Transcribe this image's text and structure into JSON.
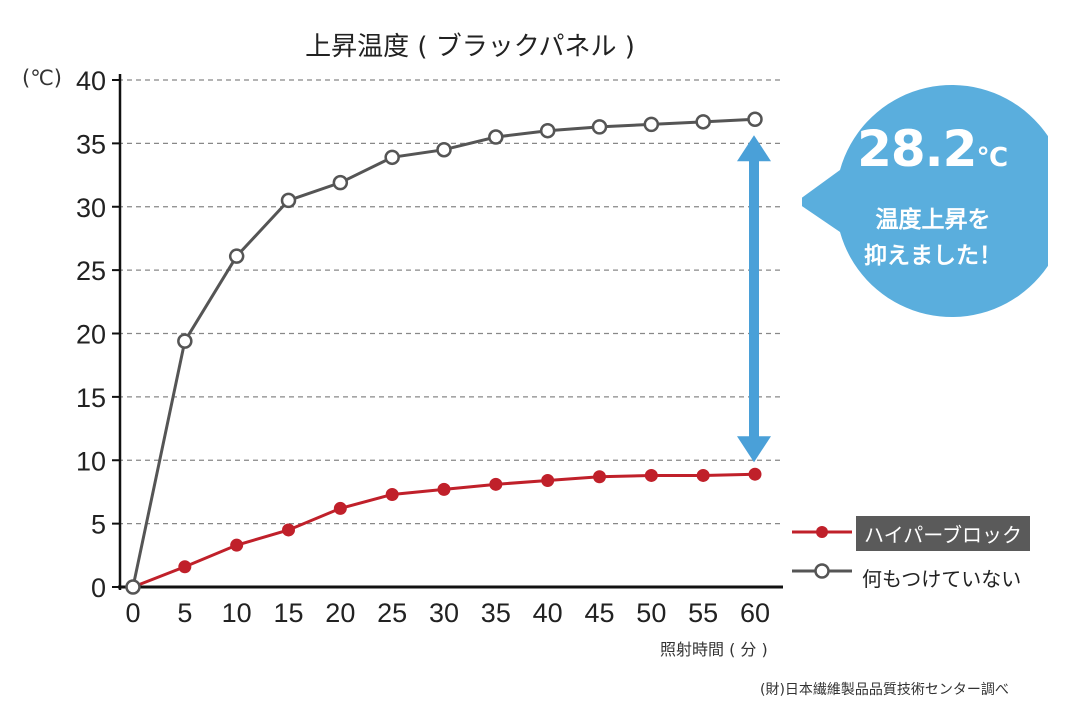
{
  "chart_data": {
    "type": "line",
    "title": "上昇温度 ( ブラックパネル )",
    "ylabel_unit": "(℃)",
    "xlabel": "照射時間 ( 分 )",
    "x": [
      0,
      5,
      10,
      15,
      20,
      25,
      30,
      35,
      40,
      45,
      50,
      55,
      60
    ],
    "x_tick_labels": [
      "0",
      "5",
      "10",
      "15",
      "20",
      "25",
      "30",
      "35",
      "40",
      "45",
      "50",
      "55",
      "60"
    ],
    "y_tick_labels": [
      "0",
      "5",
      "10",
      "15",
      "20",
      "25",
      "30",
      "35",
      "40"
    ],
    "ylim": [
      0,
      40
    ],
    "xlim": [
      0,
      60
    ],
    "grid": "horizontal-dashed",
    "legend_position": "right",
    "series": [
      {
        "name": "ハイパーブロック",
        "color": "#c0202a",
        "marker": "filled",
        "values": [
          0,
          1.6,
          3.3,
          4.5,
          6.2,
          7.3,
          7.7,
          8.1,
          8.4,
          8.7,
          8.8,
          8.8,
          8.9
        ]
      },
      {
        "name": "何もつけていない",
        "color": "#555555",
        "marker": "hollow",
        "values": [
          0,
          19.4,
          26.1,
          30.5,
          31.9,
          33.9,
          34.5,
          35.5,
          36.0,
          36.3,
          36.5,
          36.7,
          36.9
        ]
      }
    ],
    "annotation": {
      "value": "28.2",
      "unit": "℃",
      "message_line1": "温度上昇を",
      "message_line2": "抑えました！",
      "arrow_color": "#4aa0d8",
      "bubble_color": "#5aaedd"
    }
  },
  "footer": {
    "source": "(財)日本繊維製品品質技術センター調べ"
  }
}
